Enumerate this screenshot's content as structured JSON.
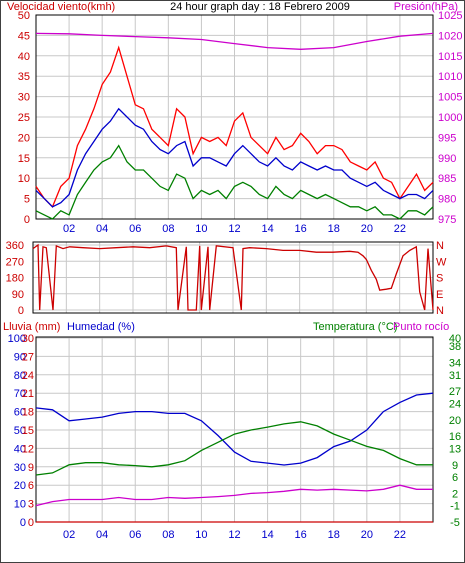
{
  "chart_data": [
    {
      "type": "line",
      "title": "24 hour graph day : 18 Febrero 2009",
      "left_axis_label": "Velocidad viento(kmh)",
      "right_axis_label": "Presión(hPa)",
      "x_ticks": [
        "02",
        "04",
        "06",
        "08",
        "10",
        "12",
        "14",
        "16",
        "18",
        "20",
        "22"
      ],
      "y_left_ticks": [
        0,
        5,
        10,
        15,
        20,
        25,
        30,
        35,
        40,
        45,
        50
      ],
      "y_left_range": [
        0,
        50
      ],
      "y_right_ticks": [
        975,
        980,
        985,
        990,
        995,
        1000,
        1005,
        1010,
        1015,
        1020,
        1025
      ],
      "y_right_range": [
        975,
        1025
      ],
      "colors": {
        "gust": "#ff0000",
        "avg": "#0000cc",
        "min": "#008000",
        "pressure": "#cc00cc",
        "left_label": "#cc0000",
        "right_label": "#cc00cc"
      },
      "series": [
        {
          "key": "gust",
          "axis": "left",
          "x": [
            0,
            0.5,
            1,
            1.5,
            2,
            2.5,
            3,
            3.5,
            4,
            4.5,
            5,
            5.5,
            6,
            6.5,
            7,
            7.5,
            8,
            8.5,
            9,
            9.5,
            10,
            10.5,
            11,
            11.5,
            12,
            12.5,
            13,
            13.5,
            14,
            14.5,
            15,
            15.5,
            16,
            16.5,
            17,
            17.5,
            18,
            18.5,
            19,
            19.5,
            20,
            20.5,
            21,
            21.5,
            22,
            22.5,
            23,
            23.5,
            24
          ],
          "y": [
            8,
            5,
            3,
            8,
            10,
            18,
            22,
            27,
            33,
            36,
            42,
            35,
            28,
            27,
            22,
            20,
            18,
            27,
            25,
            16,
            20,
            19,
            20,
            18,
            24,
            26,
            20,
            18,
            16,
            20,
            17,
            18,
            21,
            19,
            16,
            18,
            18,
            17,
            14,
            13,
            12,
            14,
            10,
            9,
            5,
            8,
            11,
            7,
            9
          ]
        },
        {
          "key": "avg",
          "axis": "left",
          "x": [
            0,
            0.5,
            1,
            1.5,
            2,
            2.5,
            3,
            3.5,
            4,
            4.5,
            5,
            5.5,
            6,
            6.5,
            7,
            7.5,
            8,
            8.5,
            9,
            9.5,
            10,
            10.5,
            11,
            11.5,
            12,
            12.5,
            13,
            13.5,
            14,
            14.5,
            15,
            15.5,
            16,
            16.5,
            17,
            17.5,
            18,
            18.5,
            19,
            19.5,
            20,
            20.5,
            21,
            21.5,
            22,
            22.5,
            23,
            23.5,
            24
          ],
          "y": [
            7,
            5,
            3,
            4,
            6,
            12,
            16,
            19,
            22,
            24,
            27,
            25,
            23,
            22,
            19,
            17,
            16,
            18,
            19,
            13,
            15,
            15,
            14,
            13,
            16,
            18,
            16,
            14,
            13,
            15,
            13,
            12,
            14,
            13,
            12,
            13,
            12,
            12,
            10,
            9,
            8,
            9,
            7,
            6,
            5,
            6,
            6,
            5,
            7
          ]
        },
        {
          "key": "min",
          "axis": "left",
          "x": [
            0,
            0.5,
            1,
            1.5,
            2,
            2.5,
            3,
            3.5,
            4,
            4.5,
            5,
            5.5,
            6,
            6.5,
            7,
            7.5,
            8,
            8.5,
            9,
            9.5,
            10,
            10.5,
            11,
            11.5,
            12,
            12.5,
            13,
            13.5,
            14,
            14.5,
            15,
            15.5,
            16,
            16.5,
            17,
            17.5,
            18,
            18.5,
            19,
            19.5,
            20,
            20.5,
            21,
            21.5,
            22,
            22.5,
            23,
            23.5,
            24
          ],
          "y": [
            2,
            1,
            0,
            2,
            1,
            6,
            9,
            12,
            14,
            15,
            18,
            14,
            12,
            12,
            10,
            8,
            7,
            11,
            10,
            5,
            7,
            6,
            7,
            5,
            8,
            9,
            8,
            6,
            5,
            8,
            6,
            5,
            7,
            6,
            5,
            6,
            5,
            4,
            3,
            3,
            2,
            3,
            1,
            1,
            0,
            2,
            2,
            1,
            3
          ]
        },
        {
          "key": "pressure",
          "axis": "right",
          "x": [
            0,
            2,
            4,
            6,
            8,
            10,
            12,
            14,
            16,
            18,
            20,
            22,
            24
          ],
          "y": [
            1020.5,
            1020.4,
            1020,
            1019.7,
            1019.4,
            1019,
            1018,
            1017,
            1016.6,
            1017,
            1018.5,
            1019.8,
            1020.5
          ]
        }
      ]
    },
    {
      "type": "line",
      "left_ticks": [
        "360",
        "270",
        "180",
        "90",
        "0"
      ],
      "left_tick_values": [
        360,
        270,
        180,
        90,
        0
      ],
      "right_ticks": [
        "N",
        "W",
        "S",
        "E",
        "N"
      ],
      "y_range": [
        0,
        360
      ],
      "colors": {
        "direction": "#cc0000",
        "right_label": "#cc0000"
      },
      "series": [
        {
          "key": "direction",
          "x": [
            0,
            0.3,
            0.4,
            0.6,
            0.8,
            1.2,
            1.4,
            1.8,
            2.2,
            3,
            4,
            5,
            6,
            7,
            8,
            8.6,
            8.7,
            9.2,
            9.3,
            9.8,
            10,
            10.1,
            10.5,
            10.6,
            11,
            12,
            12.5,
            12.6,
            13,
            14,
            15,
            16,
            17,
            18,
            19,
            19.5,
            19.8,
            20,
            20.3,
            20.6,
            20.8,
            21.2,
            21.5,
            21.8,
            22.2,
            22.6,
            23,
            23.2,
            23.5,
            23.7,
            24
          ],
          "y": [
            340,
            360,
            0,
            350,
            345,
            0,
            355,
            340,
            350,
            345,
            340,
            345,
            350,
            345,
            355,
            345,
            0,
            350,
            0,
            0,
            355,
            0,
            350,
            0,
            355,
            345,
            0,
            340,
            345,
            340,
            330,
            330,
            320,
            320,
            325,
            320,
            300,
            280,
            220,
            170,
            110,
            115,
            120,
            200,
            300,
            330,
            350,
            100,
            0,
            340,
            0
          ]
        }
      ]
    },
    {
      "type": "line",
      "labels": {
        "rain": "Lluvia (mm)",
        "humidity": "Humedad (%)",
        "temperature": "Temperatura (°C)",
        "dewpoint": "Punto rocío"
      },
      "x_ticks": [
        "02",
        "04",
        "06",
        "08",
        "10",
        "12",
        "14",
        "16",
        "18",
        "20",
        "22"
      ],
      "humidity_ticks": [
        0,
        10,
        20,
        30,
        40,
        50,
        60,
        70,
        80,
        90,
        100
      ],
      "humidity_range": [
        0,
        100
      ],
      "rain_ticks": [
        "0",
        "3",
        "6",
        "9",
        "12",
        "15",
        "18",
        "21",
        "24",
        "27",
        "30"
      ],
      "temp_ticks": [
        "-5",
        "-1",
        "2",
        "6",
        "9",
        "13",
        "16",
        "20",
        "24",
        "27",
        "31",
        "34",
        "38",
        "40"
      ],
      "temp_tick_values": [
        -5,
        -1,
        2,
        6,
        9,
        13,
        16,
        20,
        24,
        27,
        31,
        34,
        38,
        40
      ],
      "temp_range": [
        -5,
        40
      ],
      "colors": {
        "rain": "#cc0000",
        "humidity": "#0000cc",
        "temperature": "#008000",
        "dewpoint": "#cc00cc",
        "temp_label": "#008000",
        "dewpoint_label": "#cc00cc"
      },
      "series": [
        {
          "key": "humidity",
          "x": [
            0,
            1,
            2,
            3,
            4,
            5,
            6,
            7,
            8,
            9,
            10,
            11,
            12,
            13,
            14,
            15,
            16,
            17,
            18,
            19,
            20,
            21,
            22,
            23,
            24
          ],
          "y": [
            62,
            61,
            55,
            56,
            57,
            59,
            60,
            60,
            59,
            59,
            55,
            47,
            38,
            33,
            32,
            31,
            32,
            35,
            41,
            44,
            50,
            60,
            65,
            69,
            70
          ]
        },
        {
          "key": "temperature",
          "x": [
            0,
            1,
            2,
            3,
            4,
            5,
            6,
            7,
            8,
            9,
            10,
            11,
            12,
            13,
            14,
            15,
            16,
            17,
            18,
            19,
            20,
            21,
            22,
            23,
            24
          ],
          "y": [
            6.5,
            7,
            9,
            9.5,
            9.5,
            9,
            8.8,
            8.5,
            9,
            10,
            12.5,
            14.5,
            16.5,
            17.5,
            18.2,
            19,
            19.5,
            18.5,
            16.5,
            15,
            13.5,
            12.5,
            10.5,
            9,
            9
          ]
        },
        {
          "key": "dewpoint",
          "x": [
            0,
            1,
            2,
            3,
            4,
            5,
            6,
            7,
            8,
            9,
            10,
            11,
            12,
            13,
            14,
            15,
            16,
            17,
            18,
            19,
            20,
            21,
            22,
            23,
            24
          ],
          "y": [
            -1,
            0,
            0.5,
            0.5,
            0.5,
            1,
            0.5,
            0.5,
            1,
            0.8,
            1,
            1.2,
            1.5,
            2,
            2.2,
            2.5,
            3,
            2.8,
            3,
            2.8,
            2.6,
            3,
            4,
            3,
            3
          ]
        },
        {
          "key": "rain",
          "x": [
            0,
            24
          ],
          "y": [
            0,
            0
          ]
        }
      ]
    }
  ]
}
